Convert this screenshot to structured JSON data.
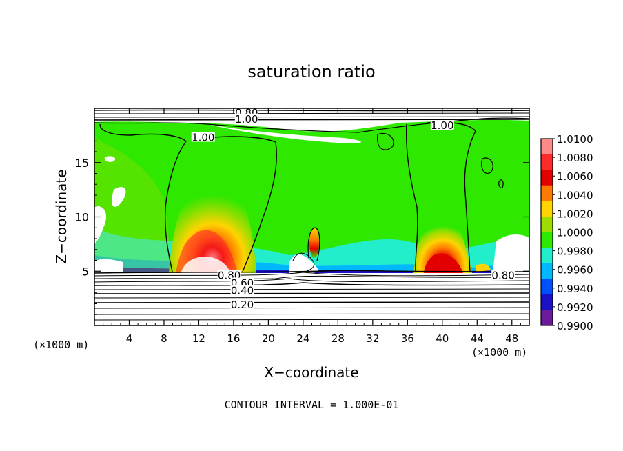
{
  "chart_data": {
    "type": "heatmap",
    "title": "saturation ratio",
    "xlabel": "X−coordinate",
    "ylabel": "Z−coordinate",
    "x_unit_label_left": "(×1000 m)",
    "x_unit_label_right": "(×1000 m)",
    "xlim": [
      0,
      50
    ],
    "ylim": [
      0,
      20
    ],
    "x_ticks": [
      4,
      8,
      12,
      16,
      20,
      24,
      28,
      32,
      36,
      40,
      44,
      48
    ],
    "y_ticks": [
      5,
      10,
      15
    ],
    "colorbar": {
      "levels": [
        "1.0100",
        "1.0080",
        "1.0060",
        "1.0040",
        "1.0020",
        "1.0000",
        "0.9980",
        "0.9960",
        "0.9940",
        "0.9920",
        "0.9900"
      ],
      "colors": [
        "#ff8a8a",
        "#ff2a2a",
        "#e20000",
        "#ff7a00",
        "#ffd400",
        "#9ddd00",
        "#2ee800",
        "#22eecc",
        "#00b8ff",
        "#0050ff",
        "#1a10c8",
        "#6a1a9a"
      ]
    },
    "contour_labels": [
      {
        "text": "0.80",
        "x": 17.5,
        "y": 19.6
      },
      {
        "text": "1.00",
        "x": 17.5,
        "y": 19.0
      },
      {
        "text": "1.00",
        "x": 12.5,
        "y": 17.3
      },
      {
        "text": "1.00",
        "x": 40.0,
        "y": 18.4
      },
      {
        "text": "0.80",
        "x": 15.5,
        "y": 4.6
      },
      {
        "text": "0.60",
        "x": 17.0,
        "y": 3.9
      },
      {
        "text": "0.40",
        "x": 17.0,
        "y": 3.2
      },
      {
        "text": "0.20",
        "x": 17.0,
        "y": 1.9
      },
      {
        "text": "0.80",
        "x": 47.0,
        "y": 4.6
      }
    ],
    "footer": "CONTOUR INTERVAL =  1.000E-01"
  }
}
